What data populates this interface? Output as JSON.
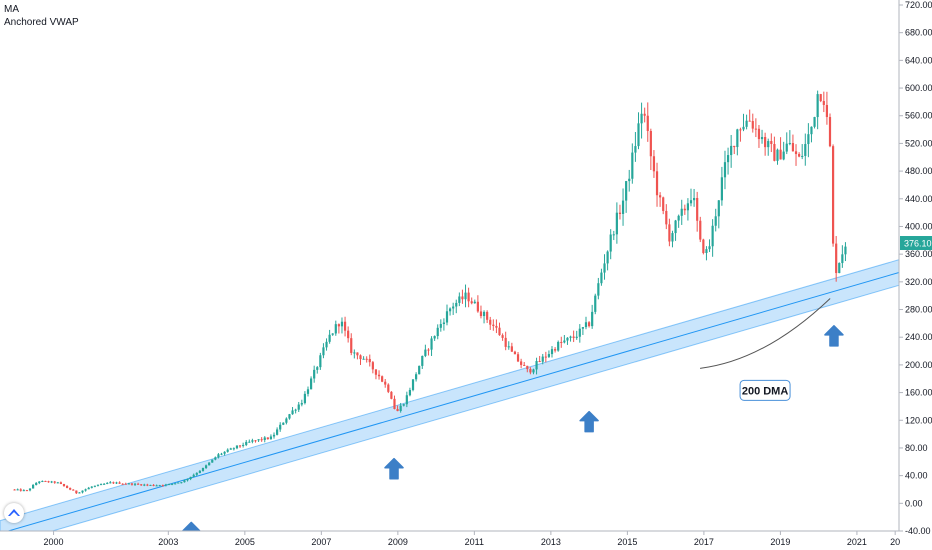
{
  "legend": {
    "symbol": "MA",
    "indicator": "Anchored VWAP"
  },
  "price_badge": {
    "value": "376.10",
    "color": "#26a69a"
  },
  "colors": {
    "up": "#26a69a",
    "down": "#ef5350",
    "band_fill": "#bbdefb",
    "band_line": "#2196f3",
    "arrow": "#3c7fc7",
    "callout_border": "#4a90d9"
  },
  "chart_data": {
    "type": "candlestick",
    "title": "",
    "xlabel": "",
    "ylabel": "",
    "x_ticks": [
      "2000",
      "2003",
      "2005",
      "2007",
      "2009",
      "2011",
      "2013",
      "2015",
      "2017",
      "2019",
      "2021",
      "20"
    ],
    "y_ticks": [
      "-40.00",
      "0.00",
      "40.00",
      "80.00",
      "120.00",
      "160.00",
      "200.00",
      "240.00",
      "280.00",
      "320.00",
      "360.00",
      "400.00",
      "440.00",
      "480.00",
      "520.00",
      "560.00",
      "600.00",
      "640.00",
      "680.00",
      "720.00"
    ],
    "ylim": [
      -40,
      720
    ],
    "xlim": [
      1998.6,
      2022.1
    ],
    "last_price": 376.1,
    "band": {
      "name": "200 DMA",
      "start": {
        "x": 1998.6,
        "lower": -62,
        "upper": -25
      },
      "end": {
        "x": 2022.1,
        "lower": 315,
        "upper": 352
      }
    },
    "annotation": {
      "text": "200 DMA",
      "line_from": {
        "x": 2016.9,
        "y": 195
      },
      "line_to": {
        "x": 2020.3,
        "y": 296
      }
    },
    "arrows": [
      {
        "x": 2003.6,
        "y": -42
      },
      {
        "x": 2008.9,
        "y": 50
      },
      {
        "x": 2014.0,
        "y": 118
      },
      {
        "x": 2020.4,
        "y": 242
      }
    ],
    "price_path": [
      [
        1998.9,
        20
      ],
      [
        1999.3,
        18
      ],
      [
        1999.6,
        32
      ],
      [
        2000.1,
        30
      ],
      [
        2000.6,
        15
      ],
      [
        2001.0,
        24
      ],
      [
        2001.5,
        30
      ],
      [
        2002.0,
        28
      ],
      [
        2002.6,
        26
      ],
      [
        2003.0,
        27
      ],
      [
        2003.4,
        32
      ],
      [
        2003.9,
        50
      ],
      [
        2004.3,
        70
      ],
      [
        2004.8,
        82
      ],
      [
        2005.2,
        90
      ],
      [
        2005.7,
        95
      ],
      [
        2006.1,
        125
      ],
      [
        2006.5,
        148
      ],
      [
        2006.9,
        200
      ],
      [
        2007.2,
        240
      ],
      [
        2007.5,
        265
      ],
      [
        2007.8,
        218
      ],
      [
        2008.1,
        210
      ],
      [
        2008.5,
        185
      ],
      [
        2008.8,
        160
      ],
      [
        2008.95,
        130
      ],
      [
        2009.2,
        150
      ],
      [
        2009.6,
        205
      ],
      [
        2010.0,
        248
      ],
      [
        2010.4,
        285
      ],
      [
        2010.8,
        300
      ],
      [
        2011.2,
        275
      ],
      [
        2011.6,
        250
      ],
      [
        2012.0,
        215
      ],
      [
        2012.4,
        190
      ],
      [
        2012.8,
        210
      ],
      [
        2013.2,
        230
      ],
      [
        2013.6,
        240
      ],
      [
        2014.0,
        260
      ],
      [
        2014.3,
        330
      ],
      [
        2014.6,
        390
      ],
      [
        2014.9,
        440
      ],
      [
        2015.1,
        490
      ],
      [
        2015.4,
        575
      ],
      [
        2015.6,
        505
      ],
      [
        2015.8,
        445
      ],
      [
        2016.1,
        385
      ],
      [
        2016.4,
        415
      ],
      [
        2016.7,
        450
      ],
      [
        2016.9,
        375
      ],
      [
        2017.1,
        360
      ],
      [
        2017.5,
        475
      ],
      [
        2017.9,
        545
      ],
      [
        2018.2,
        555
      ],
      [
        2018.6,
        520
      ],
      [
        2018.9,
        500
      ],
      [
        2019.2,
        520
      ],
      [
        2019.5,
        495
      ],
      [
        2019.8,
        540
      ],
      [
        2020.0,
        600
      ],
      [
        2020.15,
        585
      ],
      [
        2020.3,
        510
      ],
      [
        2020.4,
        330
      ],
      [
        2020.6,
        360
      ],
      [
        2020.7,
        376
      ]
    ]
  }
}
